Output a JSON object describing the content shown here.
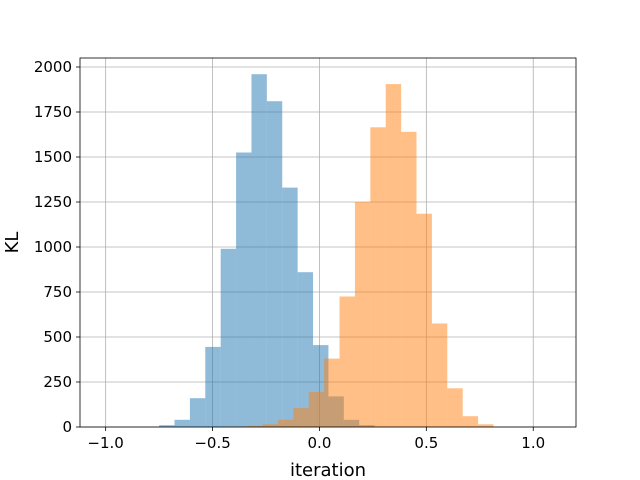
{
  "chart_data": {
    "type": "bar",
    "xlabel": "iteration",
    "ylabel": "KL",
    "xlim": [
      -1.12,
      1.2
    ],
    "ylim": [
      0,
      2050
    ],
    "xticks": [
      {
        "value": -1.0,
        "label": "−1.0"
      },
      {
        "value": -0.5,
        "label": "−0.5"
      },
      {
        "value": 0.0,
        "label": "0.0"
      },
      {
        "value": 0.5,
        "label": "0.5"
      },
      {
        "value": 1.0,
        "label": "1.0"
      }
    ],
    "yticks": [
      {
        "value": 0,
        "label": "0"
      },
      {
        "value": 250,
        "label": "250"
      },
      {
        "value": 500,
        "label": "500"
      },
      {
        "value": 750,
        "label": "750"
      },
      {
        "value": 1000,
        "label": "1000"
      },
      {
        "value": 1250,
        "label": "1250"
      },
      {
        "value": 1500,
        "label": "1500"
      },
      {
        "value": 1750,
        "label": "1750"
      },
      {
        "value": 2000,
        "label": "2000"
      }
    ],
    "grid": true,
    "bin_width": 0.072,
    "series": [
      {
        "color": "#1f77b4",
        "opacity": 0.5,
        "bin_start": -0.75,
        "values": [
          10,
          40,
          160,
          445,
          990,
          1525,
          1960,
          1810,
          1330,
          860,
          455,
          170,
          40,
          10
        ]
      },
      {
        "color": "#ff7f0e",
        "opacity": 0.5,
        "bin_start": -0.41,
        "values": [
          2,
          6,
          15,
          40,
          105,
          195,
          380,
          725,
          1250,
          1665,
          1905,
          1640,
          1185,
          575,
          215,
          60,
          15
        ]
      }
    ]
  }
}
